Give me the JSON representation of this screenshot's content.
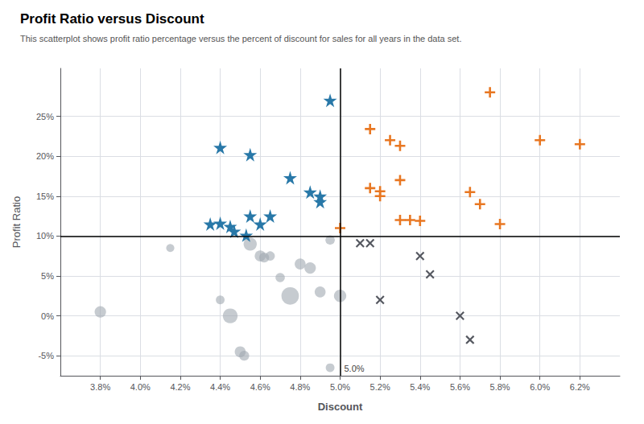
{
  "chart_data": {
    "type": "scatter",
    "title": "Profit Ratio versus Discount",
    "subtitle": "This scatterplot shows profit ratio percentage versus the percent of discount for sales for all years in the data set.",
    "xlabel": "Discount",
    "ylabel": "Profit Ratio",
    "xlim": [
      0.036,
      0.064
    ],
    "ylim": [
      -0.075,
      0.31
    ],
    "xticks": [
      {
        "value": 0.038,
        "label": "3.8%"
      },
      {
        "value": 0.04,
        "label": "4.0%"
      },
      {
        "value": 0.042,
        "label": "4.2%"
      },
      {
        "value": 0.044,
        "label": "4.4%"
      },
      {
        "value": 0.046,
        "label": "4.6%"
      },
      {
        "value": 0.048,
        "label": "4.8%"
      },
      {
        "value": 0.05,
        "label": "5.0%"
      },
      {
        "value": 0.052,
        "label": "5.2%"
      },
      {
        "value": 0.054,
        "label": "5.4%"
      },
      {
        "value": 0.056,
        "label": "5.6%"
      },
      {
        "value": 0.058,
        "label": "5.8%"
      },
      {
        "value": 0.06,
        "label": "6.0%"
      },
      {
        "value": 0.062,
        "label": "6.2%"
      }
    ],
    "yticks": [
      {
        "value": -0.05,
        "label": "-5%"
      },
      {
        "value": 0.0,
        "label": "0%"
      },
      {
        "value": 0.05,
        "label": "5%"
      },
      {
        "value": 0.1,
        "label": "10%"
      },
      {
        "value": 0.15,
        "label": "15%"
      },
      {
        "value": 0.2,
        "label": "20%"
      },
      {
        "value": 0.25,
        "label": "25%"
      }
    ],
    "grid": true,
    "series": [
      {
        "color": "#a0a8b0",
        "marker": "circle",
        "x": [
          0.038,
          0.0415,
          0.044,
          0.0445,
          0.045,
          0.0452,
          0.0455,
          0.046,
          0.0462,
          0.0465,
          0.047,
          0.0475,
          0.048,
          0.0485,
          0.049,
          0.0495,
          0.0495,
          0.05
        ],
        "y": [
          0.005,
          0.085,
          0.02,
          0.0,
          -0.045,
          -0.05,
          0.09,
          0.075,
          0.073,
          0.075,
          0.048,
          0.025,
          0.065,
          0.06,
          0.03,
          0.095,
          -0.065,
          0.025
        ],
        "sizes": [
          60,
          30,
          35,
          100,
          55,
          45,
          80,
          55,
          45,
          40,
          40,
          140,
          55,
          60,
          55,
          40,
          35,
          70
        ]
      },
      {
        "color": "#2878a8",
        "marker": "star",
        "x": [
          0.0495,
          0.044,
          0.0455,
          0.0475,
          0.0485,
          0.049,
          0.049,
          0.0455,
          0.0465,
          0.044,
          0.0445,
          0.0447,
          0.0435,
          0.0453,
          0.046
        ],
        "y": [
          0.27,
          0.211,
          0.202,
          0.173,
          0.155,
          0.15,
          0.143,
          0.125,
          0.125,
          0.116,
          0.112,
          0.106,
          0.115,
          0.101,
          0.115
        ]
      },
      {
        "color": "#e87722",
        "marker": "plus",
        "x": [
          0.05,
          0.0515,
          0.0525,
          0.053,
          0.0515,
          0.052,
          0.052,
          0.053,
          0.0535,
          0.054,
          0.053,
          0.0565,
          0.057,
          0.0575,
          0.058,
          0.06,
          0.062
        ],
        "y": [
          0.11,
          0.234,
          0.22,
          0.213,
          0.16,
          0.156,
          0.15,
          0.17,
          0.12,
          0.119,
          0.12,
          0.155,
          0.14,
          0.28,
          0.115,
          0.22,
          0.215
        ]
      },
      {
        "color": "#555860",
        "marker": "x",
        "x": [
          0.051,
          0.0515,
          0.052,
          0.054,
          0.0545,
          0.056,
          0.0565
        ],
        "y": [
          0.091,
          0.091,
          0.02,
          0.075,
          0.052,
          0.0,
          -0.03
        ]
      }
    ],
    "reference_lines": [
      {
        "x": 0.05,
        "label": "5.0%"
      },
      {
        "y": 0.1
      }
    ]
  }
}
